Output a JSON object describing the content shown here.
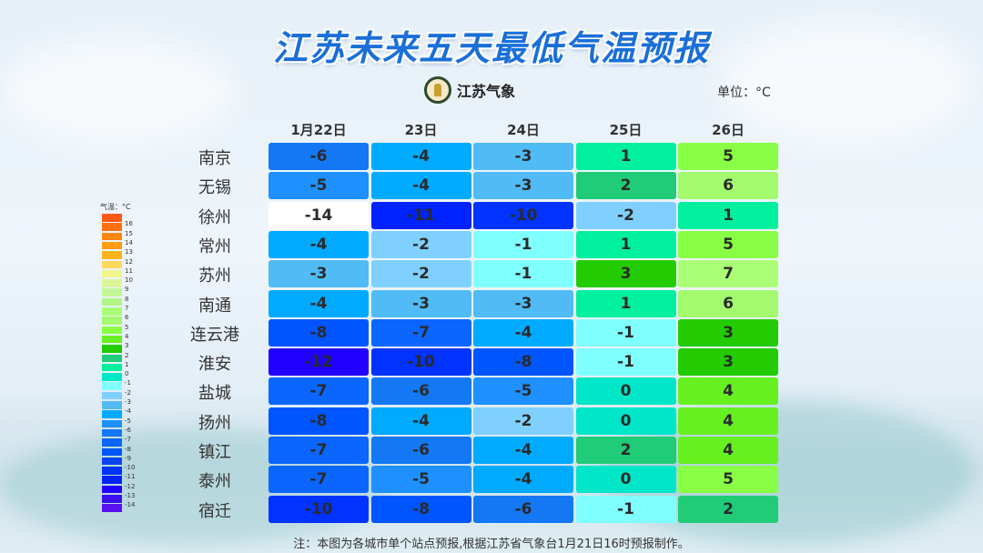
{
  "title": "江苏未来五天最低气温预报",
  "logo_text": "江苏气象",
  "unit": "单位：°C",
  "dates": [
    "1月22日",
    "23日",
    "24日",
    "25日",
    "26日"
  ],
  "cities": [
    {
      "name": "南京",
      "temps": [
        -6,
        -4,
        -3,
        1,
        5
      ]
    },
    {
      "name": "无锡",
      "temps": [
        -5,
        -4,
        -3,
        2,
        6
      ]
    },
    {
      "name": "徐州",
      "temps": [
        -14,
        -11,
        -10,
        -2,
        1
      ]
    },
    {
      "name": "常州",
      "temps": [
        -4,
        -2,
        -1,
        1,
        5
      ]
    },
    {
      "name": "苏州",
      "temps": [
        -3,
        -2,
        -1,
        3,
        7
      ]
    },
    {
      "name": "南通",
      "temps": [
        -4,
        -3,
        -3,
        1,
        6
      ]
    },
    {
      "name": "连云港",
      "temps": [
        -8,
        -7,
        -4,
        -1,
        3
      ]
    },
    {
      "name": "淮安",
      "temps": [
        -12,
        -10,
        -8,
        -1,
        3
      ]
    },
    {
      "name": "盐城",
      "temps": [
        -7,
        -6,
        -5,
        0,
        4
      ]
    },
    {
      "name": "扬州",
      "temps": [
        -8,
        -4,
        -2,
        0,
        4
      ]
    },
    {
      "name": "镇江",
      "temps": [
        -7,
        -6,
        -4,
        2,
        4
      ]
    },
    {
      "name": "泰州",
      "temps": [
        -7,
        -5,
        -4,
        0,
        5
      ]
    },
    {
      "name": "宿迁",
      "temps": [
        -10,
        -8,
        -6,
        -1,
        2
      ]
    }
  ],
  "legend": {
    "title": "气温：°C",
    "levels": [
      16,
      15,
      14,
      13,
      12,
      11,
      10,
      9,
      8,
      7,
      6,
      5,
      4,
      3,
      2,
      1,
      0,
      -1,
      -2,
      -3,
      -4,
      -5,
      -6,
      -7,
      -8,
      -9,
      -10,
      -11,
      -12,
      -13,
      -14
    ]
  },
  "colors": {
    "17": "#ff5a10",
    "16": "#ff6e10",
    "15": "#ff8410",
    "14": "#ff9c10",
    "13": "#ffb41a",
    "12": "#ffd860",
    "11": "#f2f58a",
    "10": "#dcf59a",
    "9": "#c4f794",
    "8": "#b0f585",
    "7": "#aaff77",
    "6": "#a2fa6c",
    "5": "#88ff44",
    "4": "#66f020",
    "3": "#22cc00",
    "2": "#20cc78",
    "1": "#00f0a0",
    "0": "#00e6c8",
    "-1": "#80ffff",
    "-2": "#80d0ff",
    "-3": "#50bbf5",
    "-4": "#00aaff",
    "-5": "#1e90ff",
    "-6": "#1478f5",
    "-7": "#0a66ff",
    "-8": "#0055ff",
    "-9": "#0a44f5",
    "-10": "#0033ff",
    "-11": "#0022ff",
    "-12": "#2200ff",
    "-13": "#3a10ee",
    "-14": "#ffffff"
  },
  "note": "注：本图为各城市单个站点预报,根据江苏省气象台1月21日16时预报制作。"
}
